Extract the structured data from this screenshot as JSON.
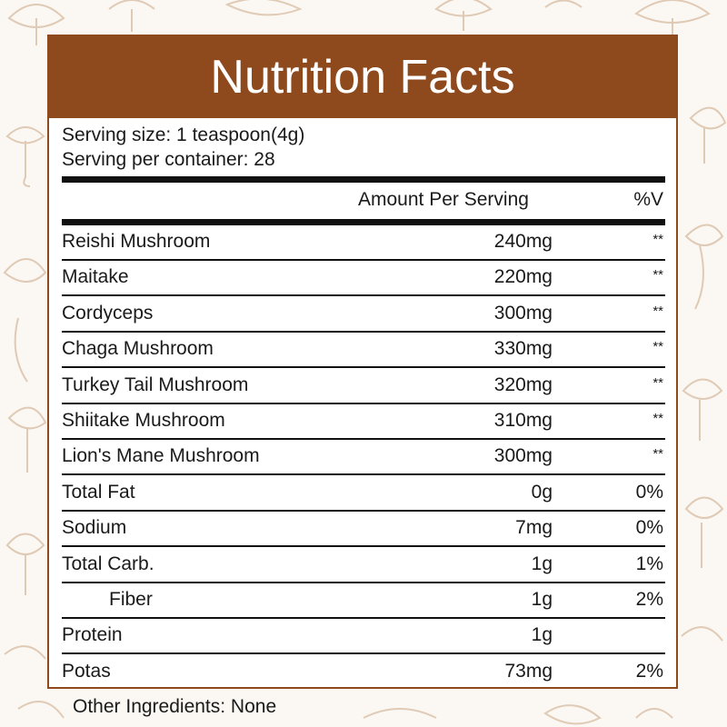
{
  "colors": {
    "brand_brown": "#8e4a1c",
    "background": "#fbf7f2",
    "rule": "#111111"
  },
  "label": {
    "title": "Nutrition Facts",
    "serving_size": "Serving size: 1 teaspoon(4g)",
    "servings_per_container": "Serving per container: 28",
    "column_amount": "Amount Per Serving",
    "column_dv": "%V",
    "rows": [
      {
        "name": "Reishi Mushroom",
        "amount": "240mg",
        "dv": "**",
        "indent": false
      },
      {
        "name": "Maitake",
        "amount": "220mg",
        "dv": "**",
        "indent": false
      },
      {
        "name": "Cordyceps",
        "amount": "300mg",
        "dv": "**",
        "indent": false
      },
      {
        "name": "Chaga Mushroom",
        "amount": "330mg",
        "dv": "**",
        "indent": false
      },
      {
        "name": "Turkey Tail Mushroom",
        "amount": "320mg",
        "dv": "**",
        "indent": false
      },
      {
        "name": "Shiitake Mushroom",
        "amount": "310mg",
        "dv": "**",
        "indent": false
      },
      {
        "name": "Lion's Mane Mushroom",
        "amount": "300mg",
        "dv": "**",
        "indent": false
      },
      {
        "name": "Total Fat",
        "amount": "0g",
        "dv": "0%",
        "indent": false
      },
      {
        "name": "Sodium",
        "amount": "7mg",
        "dv": "0%",
        "indent": false
      },
      {
        "name": "Total Carb.",
        "amount": "1g",
        "dv": "1%",
        "indent": false
      },
      {
        "name": "Fiber",
        "amount": "1g",
        "dv": "2%",
        "indent": true
      },
      {
        "name": "Protein",
        "amount": "1g",
        "dv": "",
        "indent": false
      },
      {
        "name": "Potas",
        "amount": "73mg",
        "dv": "2%",
        "indent": false
      }
    ],
    "other_ingredients": "Other Ingredients: None"
  }
}
